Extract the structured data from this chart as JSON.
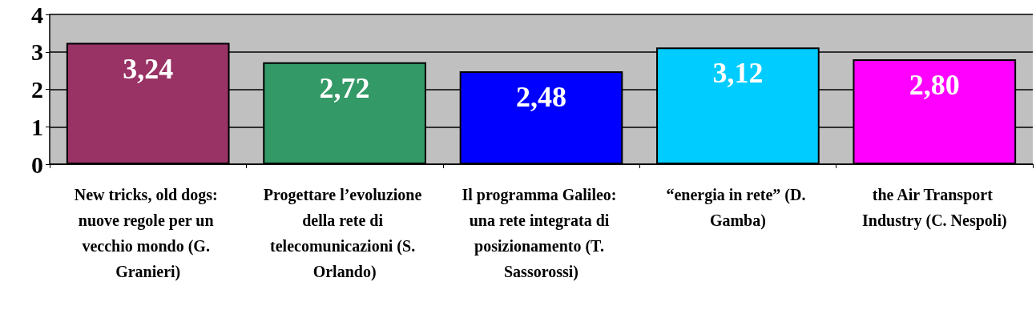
{
  "chart_data": {
    "type": "bar",
    "categories": [
      "New tricks, old dogs: nuove regole per un vecchio mondo (G. Granieri)",
      "Progettare l’evoluzione della rete di telecomunicazioni (S. Orlando)",
      "Il programma Galileo: una rete integrata di posizionamento (T. Sassorossi)",
      "“energia in rete” (D. Gamba)",
      "the Air Transport Industry (C. Nespoli)"
    ],
    "values": [
      3.24,
      2.72,
      2.48,
      3.12,
      2.8
    ],
    "colors": [
      "#993366",
      "#339966",
      "#0000ff",
      "#00ccff",
      "#ff00ff"
    ],
    "value_labels": [
      "3,24",
      "2,72",
      "2,48",
      "3,12",
      "2,80"
    ],
    "ylim": [
      0,
      4
    ],
    "yticks": [
      0,
      1,
      2,
      3,
      4
    ],
    "grid": "y"
  }
}
